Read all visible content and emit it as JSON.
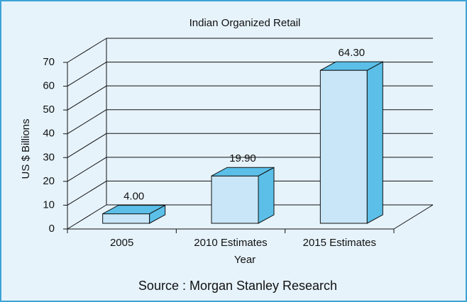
{
  "chart_data": {
    "type": "bar3d",
    "title": "Indian Organized Retail",
    "categories": [
      "2005",
      "2010 Estimates",
      "2015 Estimates"
    ],
    "values": [
      4.0,
      19.9,
      64.3
    ],
    "value_labels": [
      "4.00",
      "19.90",
      "64.30"
    ],
    "color": "#c8e6f8",
    "side_color": "#5bbfe8",
    "ylim": [
      0,
      70
    ],
    "yticks": [
      0,
      10,
      20,
      30,
      40,
      50,
      60,
      70
    ],
    "grid": true,
    "ylabel": "US $ Billions",
    "xlabel": "Year",
    "source": "Source : Morgan Stanley Research"
  }
}
